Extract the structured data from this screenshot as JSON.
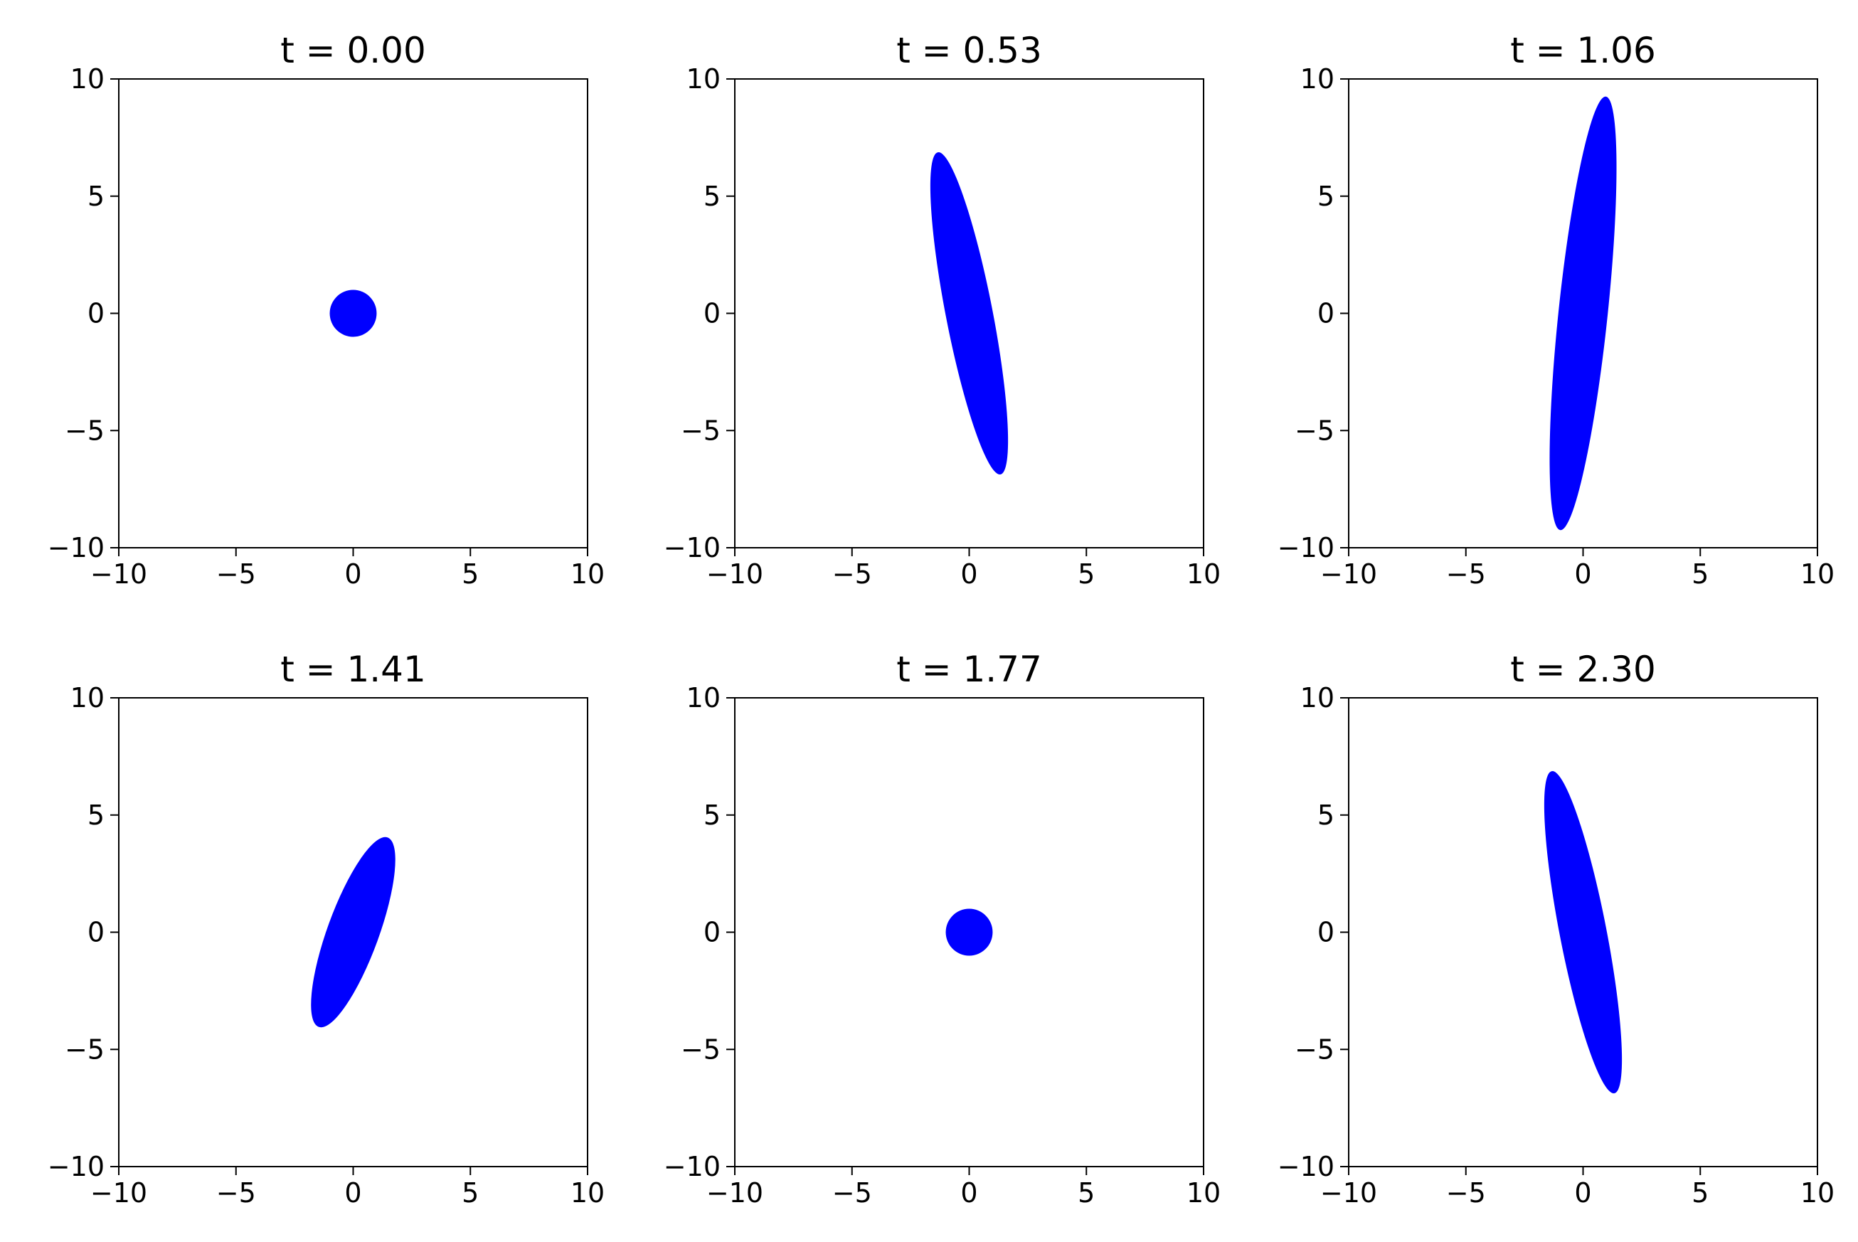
{
  "chart_data": [
    {
      "type": "scatter",
      "title": "t = 0.00",
      "xlim": [
        -10,
        10
      ],
      "ylim": [
        -10,
        10
      ],
      "xticks": [
        -10,
        -5,
        0,
        5,
        10
      ],
      "yticks": [
        -10,
        -5,
        0,
        5,
        10
      ],
      "xtick_labels": [
        "−10",
        "−5",
        "0",
        "5",
        "10"
      ],
      "ytick_labels": [
        "−10",
        "−5",
        "0",
        "5",
        "10"
      ],
      "series": [
        {
          "color": "#0000ff",
          "shape": "filled-ellipse",
          "center": [
            0,
            0
          ],
          "semi_major": 1.0,
          "semi_minor": 1.0,
          "angle_deg": 0
        }
      ]
    },
    {
      "type": "scatter",
      "title": "t = 0.53",
      "xlim": [
        -10,
        10
      ],
      "ylim": [
        -10,
        10
      ],
      "xticks": [
        -10,
        -5,
        0,
        5,
        10
      ],
      "yticks": [
        -10,
        -5,
        0,
        5,
        10
      ],
      "xtick_labels": [
        "−10",
        "−5",
        "0",
        "5",
        "10"
      ],
      "ytick_labels": [
        "−10",
        "−5",
        "0",
        "5",
        "10"
      ],
      "series": [
        {
          "color": "#0000ff",
          "shape": "filled-ellipse",
          "center": [
            0,
            0
          ],
          "semi_major": 7.0,
          "semi_minor": 1.0,
          "angle_deg": 101
        }
      ]
    },
    {
      "type": "scatter",
      "title": "t = 1.06",
      "xlim": [
        -10,
        10
      ],
      "ylim": [
        -10,
        10
      ],
      "xticks": [
        -10,
        -5,
        0,
        5,
        10
      ],
      "yticks": [
        -10,
        -5,
        0,
        5,
        10
      ],
      "xtick_labels": [
        "−10",
        "−5",
        "0",
        "5",
        "10"
      ],
      "ytick_labels": [
        "−10",
        "−5",
        "0",
        "5",
        "10"
      ],
      "series": [
        {
          "color": "#0000ff",
          "shape": "filled-ellipse",
          "center": [
            0,
            0
          ],
          "semi_major": 9.3,
          "semi_minor": 1.05,
          "angle_deg": 84
        }
      ]
    },
    {
      "type": "scatter",
      "title": "t = 1.41",
      "xlim": [
        -10,
        10
      ],
      "ylim": [
        -10,
        10
      ],
      "xticks": [
        -10,
        -5,
        0,
        5,
        10
      ],
      "yticks": [
        -10,
        -5,
        0,
        5,
        10
      ],
      "xtick_labels": [
        "−10",
        "−5",
        "0",
        "5",
        "10"
      ],
      "ytick_labels": [
        "−10",
        "−5",
        "0",
        "5",
        "10"
      ],
      "series": [
        {
          "color": "#0000ff",
          "shape": "filled-ellipse",
          "center": [
            0,
            0
          ],
          "semi_major": 4.3,
          "semi_minor": 1.1,
          "angle_deg": 70
        }
      ]
    },
    {
      "type": "scatter",
      "title": "t = 1.77",
      "xlim": [
        -10,
        10
      ],
      "ylim": [
        -10,
        10
      ],
      "xticks": [
        -10,
        -5,
        0,
        5,
        10
      ],
      "yticks": [
        -10,
        -5,
        0,
        5,
        10
      ],
      "xtick_labels": [
        "−10",
        "−5",
        "0",
        "5",
        "10"
      ],
      "ytick_labels": [
        "−10",
        "−5",
        "0",
        "5",
        "10"
      ],
      "series": [
        {
          "color": "#0000ff",
          "shape": "filled-ellipse",
          "center": [
            0,
            0
          ],
          "semi_major": 1.0,
          "semi_minor": 1.0,
          "angle_deg": 0
        }
      ]
    },
    {
      "type": "scatter",
      "title": "t = 2.30",
      "xlim": [
        -10,
        10
      ],
      "ylim": [
        -10,
        10
      ],
      "xticks": [
        -10,
        -5,
        0,
        5,
        10
      ],
      "yticks": [
        -10,
        -5,
        0,
        5,
        10
      ],
      "xtick_labels": [
        "−10",
        "−5",
        "0",
        "5",
        "10"
      ],
      "ytick_labels": [
        "−10",
        "−5",
        "0",
        "5",
        "10"
      ],
      "series": [
        {
          "color": "#0000ff",
          "shape": "filled-ellipse",
          "center": [
            0,
            0
          ],
          "semi_major": 7.0,
          "semi_minor": 1.0,
          "angle_deg": 101
        }
      ]
    }
  ]
}
